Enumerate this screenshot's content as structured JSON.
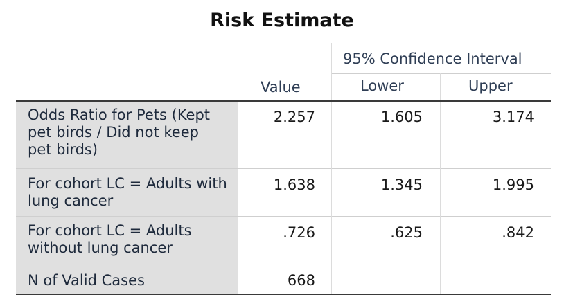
{
  "title": "Risk Estimate",
  "header": {
    "ci_label": "95% Confidence Interval",
    "value_label": "Value",
    "lower_label": "Lower",
    "upper_label": "Upper"
  },
  "rows": [
    {
      "label": "Odds Ratio for Pets (Kept pet birds / Did not keep pet birds)",
      "value": "2.257",
      "lower": "1.605",
      "upper": "3.174"
    },
    {
      "label": "For cohort LC = Adults with lung cancer",
      "value": "1.638",
      "lower": "1.345",
      "upper": "1.995"
    },
    {
      "label": "For cohort LC = Adults without lung cancer",
      "value": ".726",
      "lower": ".625",
      "upper": ".842"
    },
    {
      "label": "N of Valid Cases",
      "value": "668",
      "lower": "",
      "upper": ""
    }
  ]
}
